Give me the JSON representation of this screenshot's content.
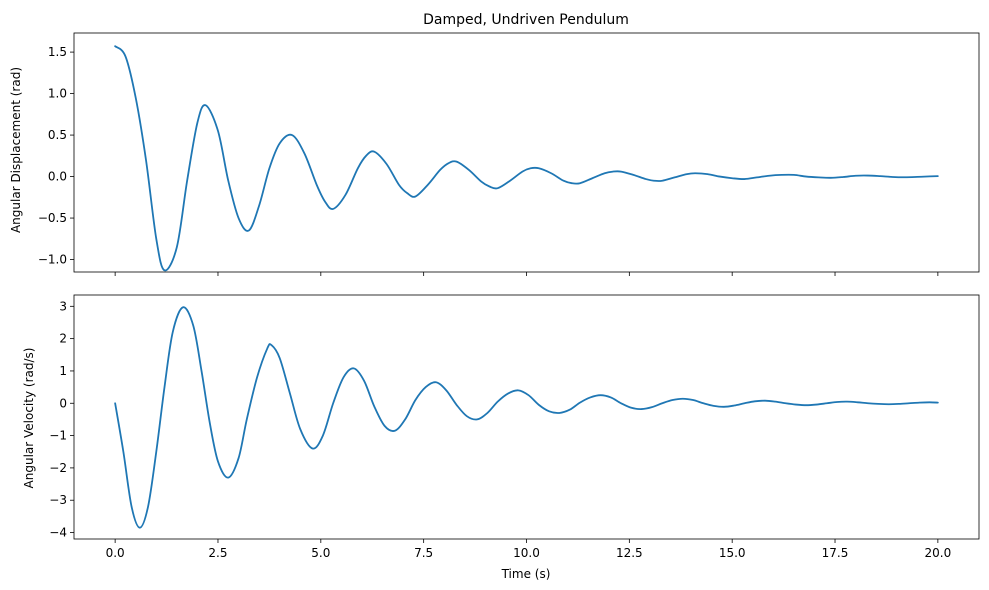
{
  "chart_data": [
    {
      "type": "line",
      "title": "Damped, Undriven Pendulum",
      "xlabel": "",
      "ylabel": "Angular Displacement (rad)",
      "xlim": [
        -1.0,
        21.0
      ],
      "ylim": [
        -1.15,
        1.73
      ],
      "xticks": [
        0.0,
        2.5,
        5.0,
        7.5,
        10.0,
        12.5,
        15.0,
        17.5,
        20.0
      ],
      "xtick_labels_visible": false,
      "yticks": [
        -1.0,
        -0.5,
        0.0,
        0.5,
        1.0,
        1.5
      ],
      "ytick_labels": [
        "−1.0",
        "−0.5",
        "0.0",
        "0.5",
        "1.0",
        "1.5"
      ],
      "grid": false,
      "color": "#1f77b4",
      "series": [
        {
          "points": [
            [
              0.0,
              1.571
            ],
            [
              0.25,
              1.45
            ],
            [
              0.5,
              0.95
            ],
            [
              0.75,
              0.2
            ],
            [
              1.0,
              -0.75
            ],
            [
              1.2,
              -1.13
            ],
            [
              1.5,
              -0.85
            ],
            [
              1.75,
              -0.05
            ],
            [
              2.0,
              0.65
            ],
            [
              2.2,
              0.86
            ],
            [
              2.5,
              0.55
            ],
            [
              2.75,
              -0.05
            ],
            [
              3.0,
              -0.5
            ],
            [
              3.25,
              -0.65
            ],
            [
              3.5,
              -0.35
            ],
            [
              3.75,
              0.1
            ],
            [
              4.0,
              0.4
            ],
            [
              4.3,
              0.5
            ],
            [
              4.6,
              0.28
            ],
            [
              4.9,
              -0.1
            ],
            [
              5.1,
              -0.3
            ],
            [
              5.3,
              -0.39
            ],
            [
              5.6,
              -0.22
            ],
            [
              5.9,
              0.1
            ],
            [
              6.1,
              0.25
            ],
            [
              6.3,
              0.3
            ],
            [
              6.6,
              0.15
            ],
            [
              6.9,
              -0.1
            ],
            [
              7.1,
              -0.2
            ],
            [
              7.3,
              -0.24
            ],
            [
              7.6,
              -0.1
            ],
            [
              7.9,
              0.08
            ],
            [
              8.1,
              0.16
            ],
            [
              8.3,
              0.18
            ],
            [
              8.6,
              0.08
            ],
            [
              8.9,
              -0.06
            ],
            [
              9.1,
              -0.12
            ],
            [
              9.3,
              -0.14
            ],
            [
              9.6,
              -0.05
            ],
            [
              9.9,
              0.06
            ],
            [
              10.1,
              0.1
            ],
            [
              10.3,
              0.1
            ],
            [
              10.6,
              0.04
            ],
            [
              10.9,
              -0.05
            ],
            [
              11.1,
              -0.08
            ],
            [
              11.3,
              -0.08
            ],
            [
              11.6,
              -0.02
            ],
            [
              11.9,
              0.04
            ],
            [
              12.1,
              0.06
            ],
            [
              12.3,
              0.06
            ],
            [
              12.6,
              0.02
            ],
            [
              12.9,
              -0.03
            ],
            [
              13.1,
              -0.05
            ],
            [
              13.3,
              -0.05
            ],
            [
              13.6,
              -0.01
            ],
            [
              13.9,
              0.03
            ],
            [
              14.1,
              0.04
            ],
            [
              14.4,
              0.03
            ],
            [
              14.7,
              0.0
            ],
            [
              15.0,
              -0.02
            ],
            [
              15.3,
              -0.03
            ],
            [
              15.6,
              -0.01
            ],
            [
              15.9,
              0.01
            ],
            [
              16.2,
              0.02
            ],
            [
              16.5,
              0.02
            ],
            [
              16.8,
              0.0
            ],
            [
              17.1,
              -0.01
            ],
            [
              17.4,
              -0.015
            ],
            [
              17.7,
              -0.005
            ],
            [
              18.0,
              0.01
            ],
            [
              18.3,
              0.012
            ],
            [
              18.6,
              0.005
            ],
            [
              18.9,
              -0.005
            ],
            [
              19.2,
              -0.008
            ],
            [
              19.5,
              -0.004
            ],
            [
              19.8,
              0.002
            ],
            [
              20.0,
              0.005
            ]
          ]
        }
      ]
    },
    {
      "type": "line",
      "title": "",
      "xlabel": "Time (s)",
      "ylabel": "Angular Velocity (rad/s)",
      "xlim": [
        -1.0,
        21.0
      ],
      "ylim": [
        -4.2,
        3.35
      ],
      "xticks": [
        0.0,
        2.5,
        5.0,
        7.5,
        10.0,
        12.5,
        15.0,
        17.5,
        20.0
      ],
      "xtick_labels": [
        "0.0",
        "2.5",
        "5.0",
        "7.5",
        "10.0",
        "12.5",
        "15.0",
        "17.5",
        "20.0"
      ],
      "xtick_labels_visible": true,
      "yticks": [
        -4,
        -3,
        -2,
        -1,
        0,
        1,
        2,
        3
      ],
      "ytick_labels": [
        "−4",
        "−3",
        "−2",
        "−1",
        "0",
        "1",
        "2",
        "3"
      ],
      "grid": false,
      "color": "#1f77b4",
      "series": [
        {
          "points": [
            [
              0.0,
              0.0
            ],
            [
              0.2,
              -1.5
            ],
            [
              0.4,
              -3.2
            ],
            [
              0.6,
              -3.85
            ],
            [
              0.8,
              -3.2
            ],
            [
              1.0,
              -1.5
            ],
            [
              1.2,
              0.5
            ],
            [
              1.4,
              2.2
            ],
            [
              1.65,
              2.97
            ],
            [
              1.9,
              2.4
            ],
            [
              2.1,
              1.0
            ],
            [
              2.3,
              -0.6
            ],
            [
              2.5,
              -1.8
            ],
            [
              2.75,
              -2.3
            ],
            [
              3.0,
              -1.7
            ],
            [
              3.2,
              -0.5
            ],
            [
              3.45,
              0.8
            ],
            [
              3.7,
              1.7
            ],
            [
              3.8,
              1.8
            ],
            [
              4.0,
              1.4
            ],
            [
              4.25,
              0.3
            ],
            [
              4.5,
              -0.8
            ],
            [
              4.8,
              -1.4
            ],
            [
              5.05,
              -1.0
            ],
            [
              5.3,
              0.0
            ],
            [
              5.55,
              0.8
            ],
            [
              5.8,
              1.08
            ],
            [
              6.05,
              0.7
            ],
            [
              6.3,
              -0.1
            ],
            [
              6.55,
              -0.7
            ],
            [
              6.8,
              -0.85
            ],
            [
              7.05,
              -0.5
            ],
            [
              7.3,
              0.1
            ],
            [
              7.55,
              0.5
            ],
            [
              7.8,
              0.65
            ],
            [
              8.05,
              0.4
            ],
            [
              8.3,
              -0.05
            ],
            [
              8.55,
              -0.4
            ],
            [
              8.8,
              -0.5
            ],
            [
              9.05,
              -0.3
            ],
            [
              9.3,
              0.05
            ],
            [
              9.55,
              0.3
            ],
            [
              9.8,
              0.4
            ],
            [
              10.05,
              0.25
            ],
            [
              10.3,
              -0.05
            ],
            [
              10.55,
              -0.25
            ],
            [
              10.8,
              -0.3
            ],
            [
              11.05,
              -0.2
            ],
            [
              11.3,
              0.02
            ],
            [
              11.55,
              0.18
            ],
            [
              11.8,
              0.25
            ],
            [
              12.05,
              0.18
            ],
            [
              12.3,
              0.0
            ],
            [
              12.55,
              -0.14
            ],
            [
              12.8,
              -0.18
            ],
            [
              13.05,
              -0.12
            ],
            [
              13.3,
              0.0
            ],
            [
              13.55,
              0.1
            ],
            [
              13.8,
              0.14
            ],
            [
              14.05,
              0.1
            ],
            [
              14.3,
              0.0
            ],
            [
              14.55,
              -0.08
            ],
            [
              14.8,
              -0.11
            ],
            [
              15.05,
              -0.07
            ],
            [
              15.3,
              0.0
            ],
            [
              15.55,
              0.06
            ],
            [
              15.8,
              0.08
            ],
            [
              16.05,
              0.05
            ],
            [
              16.3,
              0.0
            ],
            [
              16.55,
              -0.04
            ],
            [
              16.8,
              -0.06
            ],
            [
              17.05,
              -0.04
            ],
            [
              17.3,
              0.0
            ],
            [
              17.55,
              0.04
            ],
            [
              17.8,
              0.05
            ],
            [
              18.05,
              0.03
            ],
            [
              18.3,
              0.0
            ],
            [
              18.55,
              -0.02
            ],
            [
              18.8,
              -0.03
            ],
            [
              19.05,
              -0.02
            ],
            [
              19.3,
              0.0
            ],
            [
              19.55,
              0.02
            ],
            [
              19.8,
              0.03
            ],
            [
              20.0,
              0.02
            ]
          ]
        }
      ]
    }
  ]
}
